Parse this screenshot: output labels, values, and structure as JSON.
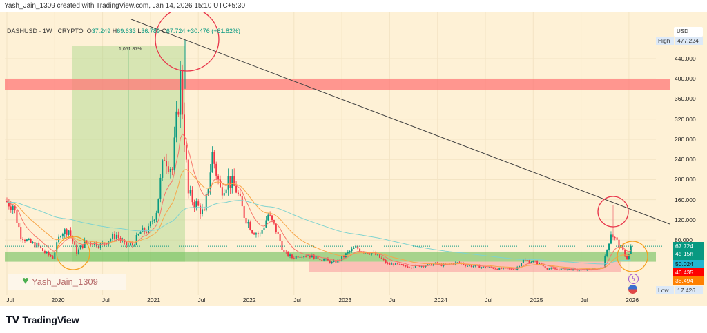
{
  "header": {
    "credit": "Yash_Jain_1309 created with TradingView.com, Jan 14, 2026 15:10 UTC+5:30"
  },
  "legend": {
    "symbol": "DASHUSD · 1W · CRYPTO",
    "o_label": "O",
    "o": "37.249",
    "h_label": "H",
    "h": "69.633",
    "l_label": "L",
    "l": "36.789",
    "c_label": "C",
    "c": "67.724",
    "change": "+30.476 (+81.82%)"
  },
  "price_axis": {
    "currency": "USD",
    "ticks": [
      "440.000",
      "400.000",
      "360.000",
      "320.000",
      "280.000",
      "240.000",
      "200.000",
      "160.000",
      "120.000",
      "80.000"
    ],
    "high_label": "High",
    "high": "477.224",
    "low_label": "Low",
    "low": "17.426",
    "last_price": "67.724",
    "countdown": "4d 15h",
    "ma1": "50.024",
    "ma2": "46.435",
    "ma3": "38.494"
  },
  "time_axis": {
    "ticks": [
      "Jul",
      "2020",
      "Jul",
      "2021",
      "Jul",
      "2022",
      "Jul",
      "2023",
      "Jul",
      "2024",
      "Jul",
      "2025",
      "Jul",
      "2026"
    ]
  },
  "annotations": {
    "long_position_pct": "1,051.87%",
    "watermark": "Yash_Jain_1309"
  },
  "colors": {
    "up": "#089981",
    "down": "#f23645",
    "ma_fast": "#f7766a",
    "ma_mid": "#f7a64a",
    "ma_slow": "#7fd3cf",
    "background": "#fef1d6"
  },
  "brand": {
    "logo": "TradingView"
  },
  "chart_data": {
    "type": "candlestick",
    "interval": "1W",
    "yunit": "USD",
    "ylim": [
      17.426,
      477.224
    ],
    "monthly_close_approx": {
      "start": "2019-07",
      "values": [
        150,
        90,
        75,
        70,
        55,
        45,
        95,
        100,
        55,
        75,
        75,
        70,
        80,
        90,
        70,
        70,
        95,
        100,
        140,
        250,
        220,
        400,
        170,
        150,
        130,
        250,
        180,
        200,
        180,
        130,
        100,
        90,
        130,
        100,
        55,
        45,
        50,
        50,
        45,
        42,
        35,
        40,
        55,
        65,
        58,
        55,
        45,
        32,
        32,
        28,
        27,
        29,
        30,
        33,
        30,
        33,
        35,
        29,
        28,
        26,
        25,
        23,
        23,
        22,
        40,
        38,
        33,
        24,
        22,
        22,
        22,
        20,
        22,
        22,
        28,
        95,
        70,
        45,
        67.724
      ]
    },
    "levels": {
      "resistance_zone": [
        378,
        400
      ],
      "support_zone": [
        37,
        57
      ],
      "lower_zone": [
        17,
        37
      ]
    }
  }
}
